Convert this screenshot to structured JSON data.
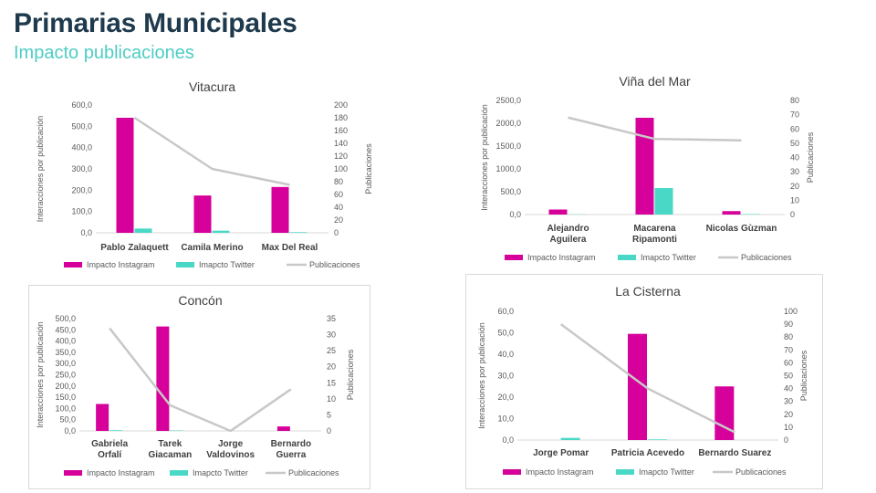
{
  "header": {
    "title": "Primarias Municipales",
    "subtitle": "Impacto publicaciones"
  },
  "colors": {
    "instagram": "#d6009a",
    "twitter": "#4ad8c6",
    "publicaciones": "#c8c8c8",
    "title": "#1f3a4d",
    "subtitle": "#4ecdc4"
  },
  "chart_data": [
    {
      "id": "vitacura",
      "type": "bar",
      "title": "Vitacura",
      "categories": [
        [
          "Pablo Zalaquett"
        ],
        [
          "Camila Merino"
        ],
        [
          "Max Del Real"
        ]
      ],
      "series": [
        {
          "name": "Impacto Instagram",
          "kind": "bar",
          "axis": "left",
          "values": [
            540,
            175,
            215
          ]
        },
        {
          "name": "Imapcto Twitter",
          "kind": "bar",
          "axis": "left",
          "values": [
            20,
            10,
            3
          ]
        },
        {
          "name": "Publicaciones",
          "kind": "line",
          "axis": "right",
          "values": [
            180,
            100,
            75
          ]
        }
      ],
      "ylabel": "Interacciones por publicación",
      "y2label": "Publicaciones",
      "ylim": [
        0,
        600
      ],
      "y2lim": [
        0,
        200
      ],
      "yticks": [
        "0,0",
        "100,0",
        "200,0",
        "300,0",
        "400,0",
        "500,0",
        "600,0"
      ],
      "y2ticks": [
        "0",
        "20",
        "40",
        "60",
        "80",
        "100",
        "120",
        "140",
        "160",
        "180",
        "200"
      ]
    },
    {
      "id": "vina",
      "type": "bar",
      "title": "Viña del Mar",
      "categories": [
        [
          "Alejandro",
          "Aguilera"
        ],
        [
          "Macarena",
          "Ripamonti"
        ],
        [
          "Nicolas Gùzman"
        ]
      ],
      "series": [
        {
          "name": "Impacto Instagram",
          "kind": "bar",
          "axis": "left",
          "values": [
            110,
            2120,
            75
          ]
        },
        {
          "name": "Imapcto Twitter",
          "kind": "bar",
          "axis": "left",
          "values": [
            5,
            580,
            10
          ]
        },
        {
          "name": "Publicaciones",
          "kind": "line",
          "axis": "right",
          "values": [
            68,
            53,
            52
          ]
        }
      ],
      "ylabel": "Interacciones por publicación",
      "y2label": "Publicaciones",
      "ylim": [
        0,
        2500
      ],
      "y2lim": [
        0,
        80
      ],
      "yticks": [
        "0,0",
        "500,0",
        "1000,0",
        "1500,0",
        "2000,0",
        "2500,0"
      ],
      "y2ticks": [
        "0",
        "10",
        "20",
        "30",
        "40",
        "50",
        "60",
        "70",
        "80"
      ]
    },
    {
      "id": "concon",
      "type": "bar",
      "title": "Concón",
      "categories": [
        [
          "Gabriela",
          "Orfalí"
        ],
        [
          "Tarek",
          "Giacaman"
        ],
        [
          "Jorge",
          "Valdovinos"
        ],
        [
          "Bernardo",
          "Guerra"
        ]
      ],
      "series": [
        {
          "name": "Impacto Instagram",
          "kind": "bar",
          "axis": "left",
          "values": [
            120,
            465,
            0,
            20
          ]
        },
        {
          "name": "Imapcto Twitter",
          "kind": "bar",
          "axis": "left",
          "values": [
            3,
            2,
            0,
            0
          ]
        },
        {
          "name": "Publicaciones",
          "kind": "line",
          "axis": "right",
          "values": [
            32,
            8,
            0,
            13
          ]
        }
      ],
      "ylabel": "Interacciones por publicación",
      "y2label": "Publicaciones",
      "ylim": [
        0,
        500
      ],
      "y2lim": [
        0,
        35
      ],
      "yticks": [
        "0,0",
        "50,0",
        "100,0",
        "150,0",
        "200,0",
        "250,0",
        "300,0",
        "350,0",
        "400,0",
        "450,0",
        "500,0"
      ],
      "y2ticks": [
        "0",
        "5",
        "10",
        "15",
        "20",
        "25",
        "30",
        "35"
      ]
    },
    {
      "id": "cisterna",
      "type": "bar",
      "title": "La Cisterna",
      "categories": [
        [
          "Jorge Pomar"
        ],
        [
          "Patricia Acevedo"
        ],
        [
          "Bernardo Suarez"
        ]
      ],
      "series": [
        {
          "name": "Impacto Instagram",
          "kind": "bar",
          "axis": "left",
          "values": [
            0,
            49.5,
            25
          ]
        },
        {
          "name": "Imapcto Twitter",
          "kind": "bar",
          "axis": "left",
          "values": [
            1,
            0.3,
            0
          ]
        },
        {
          "name": "Publicaciones",
          "kind": "line",
          "axis": "right",
          "values": [
            90,
            40,
            6
          ]
        }
      ],
      "ylabel": "Interacciones por publicación",
      "y2label": "Publicaciones",
      "ylim": [
        0,
        60
      ],
      "y2lim": [
        0,
        100
      ],
      "yticks": [
        "0,0",
        "10,0",
        "20,0",
        "30,0",
        "40,0",
        "50,0",
        "60,0"
      ],
      "y2ticks": [
        "0",
        "10",
        "20",
        "30",
        "40",
        "50",
        "60",
        "70",
        "80",
        "90",
        "100"
      ]
    }
  ]
}
